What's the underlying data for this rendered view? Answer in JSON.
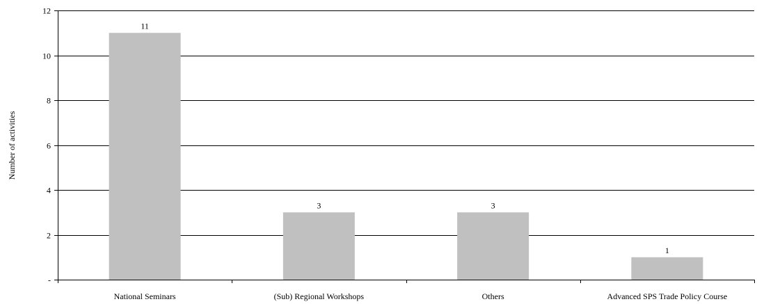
{
  "chart_data": {
    "type": "bar",
    "categories": [
      "National Seminars",
      "(Sub) Regional Workshops",
      "Others",
      "Advanced SPS Trade Policy Course"
    ],
    "values": [
      11,
      3,
      3,
      1
    ],
    "data_labels": [
      "11",
      "3",
      "3",
      "1"
    ],
    "ylabel": "Number of activities",
    "ylim": [
      0,
      12
    ],
    "yticks": [
      0,
      2,
      4,
      6,
      8,
      10,
      12
    ],
    "ytick_labels": [
      "-",
      "2",
      "4",
      "6",
      "8",
      "10",
      "12"
    ],
    "grid": true,
    "legend": "none",
    "colors": {
      "bar": "#c0c0c0",
      "grid": "#000000",
      "axis": "#000000"
    }
  }
}
